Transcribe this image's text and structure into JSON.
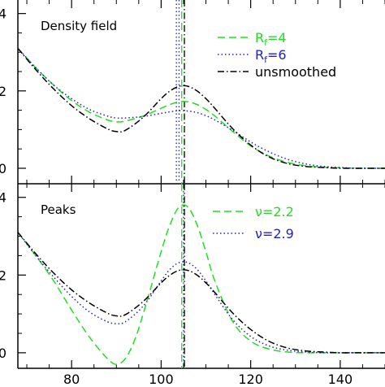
{
  "colors": {
    "green": "#22dd22",
    "blue": "#2222cc",
    "black": "#000000"
  },
  "chart_data": [
    {
      "type": "line",
      "title": "Density field",
      "xlim": [
        68,
        150
      ],
      "ylim": [
        -0.4,
        4.35
      ],
      "yticks": [
        0,
        2,
        4
      ],
      "yticklabels": [
        "0",
        "2",
        "4"
      ],
      "xticks": [
        80,
        100,
        120,
        140
      ],
      "vlines": [
        {
          "x": 103.4,
          "color": "#2222cc",
          "style": "dotted"
        },
        {
          "x": 104.0,
          "color": "#2222cc",
          "style": "dotted"
        },
        {
          "x": 104.6,
          "color": "#22dd22",
          "style": "dashed"
        },
        {
          "x": 105.2,
          "color": "#000000",
          "style": "dashdot"
        }
      ],
      "legend": {
        "placement": "top-right",
        "entries": [
          "R_f=4",
          "R_f=6",
          "unsmoothed"
        ]
      },
      "series": [
        {
          "name": "R_f=4",
          "color": "#22dd22",
          "style": "dashed",
          "x": [
            68,
            72,
            76,
            80,
            84,
            88,
            90,
            92,
            96,
            100,
            102,
            104,
            106,
            108,
            110,
            112,
            116,
            120,
            124,
            128,
            132,
            136,
            140,
            144,
            150
          ],
          "y": [
            3.1,
            2.6,
            2.15,
            1.75,
            1.45,
            1.25,
            1.2,
            1.22,
            1.35,
            1.55,
            1.65,
            1.72,
            1.72,
            1.65,
            1.52,
            1.35,
            0.95,
            0.58,
            0.32,
            0.16,
            0.07,
            0.03,
            0.01,
            0.0,
            0.0
          ]
        },
        {
          "name": "R_f=6",
          "color": "#2222cc",
          "style": "dotted",
          "x": [
            68,
            72,
            76,
            80,
            84,
            88,
            90,
            92,
            96,
            100,
            102,
            104,
            106,
            108,
            110,
            112,
            116,
            120,
            124,
            128,
            132,
            136,
            140,
            144,
            150
          ],
          "y": [
            3.1,
            2.6,
            2.15,
            1.8,
            1.52,
            1.35,
            1.3,
            1.3,
            1.34,
            1.42,
            1.46,
            1.49,
            1.48,
            1.44,
            1.36,
            1.25,
            0.98,
            0.68,
            0.43,
            0.24,
            0.12,
            0.05,
            0.02,
            0.0,
            0.0
          ]
        },
        {
          "name": "unsmoothed",
          "color": "#000000",
          "style": "dashdot",
          "x": [
            68,
            72,
            76,
            80,
            84,
            88,
            90,
            92,
            96,
            100,
            102,
            104,
            106,
            108,
            110,
            112,
            116,
            120,
            124,
            128,
            132,
            136,
            140,
            144,
            150
          ],
          "y": [
            3.1,
            2.55,
            2.05,
            1.62,
            1.28,
            1.02,
            0.95,
            0.98,
            1.32,
            1.8,
            2.0,
            2.12,
            2.12,
            2.0,
            1.8,
            1.55,
            1.02,
            0.6,
            0.3,
            0.13,
            0.05,
            0.02,
            0.0,
            0.0,
            0.0
          ]
        }
      ]
    },
    {
      "type": "line",
      "title": "Peaks",
      "xlim": [
        68,
        150
      ],
      "ylim": [
        -0.4,
        4.35
      ],
      "yticks": [
        0,
        2,
        4
      ],
      "yticklabels": [
        "0",
        "2",
        "4"
      ],
      "xticks": [
        80,
        100,
        120,
        140
      ],
      "xticklabels": [
        "80",
        "100",
        "120",
        "140"
      ],
      "vlines": [
        {
          "x": 104.6,
          "color": "#22dd22",
          "style": "dashed"
        },
        {
          "x": 105.0,
          "color": "#2222cc",
          "style": "dotted"
        },
        {
          "x": 105.2,
          "color": "#000000",
          "style": "dashdot"
        }
      ],
      "legend": {
        "placement": "top-right",
        "entries": [
          "ν=2.2",
          "ν=2.9"
        ]
      },
      "series": [
        {
          "name": "ν=2.2",
          "color": "#22dd22",
          "style": "dashed",
          "x": [
            68,
            72,
            76,
            80,
            84,
            88,
            90,
            92,
            94,
            96,
            100,
            102,
            104,
            106,
            108,
            110,
            112,
            116,
            120,
            124,
            128,
            132,
            136,
            140,
            144,
            150
          ],
          "y": [
            3.1,
            2.5,
            1.85,
            1.1,
            0.4,
            -0.15,
            -0.3,
            -0.15,
            0.3,
            1.0,
            2.6,
            3.3,
            3.75,
            3.75,
            3.3,
            2.6,
            1.85,
            0.8,
            0.3,
            0.1,
            0.02,
            0.0,
            0.0,
            0.0,
            0.0,
            0.0
          ]
        },
        {
          "name": "ν=2.9",
          "color": "#2222cc",
          "style": "dotted",
          "x": [
            68,
            72,
            76,
            80,
            84,
            88,
            90,
            92,
            96,
            100,
            102,
            104,
            106,
            108,
            110,
            112,
            116,
            120,
            124,
            128,
            132,
            136,
            140,
            144,
            150
          ],
          "y": [
            3.1,
            2.5,
            1.95,
            1.45,
            1.05,
            0.8,
            0.75,
            0.8,
            1.2,
            1.85,
            2.15,
            2.32,
            2.32,
            2.15,
            1.85,
            1.5,
            0.85,
            0.42,
            0.18,
            0.07,
            0.02,
            0.0,
            0.0,
            0.0,
            0.0
          ]
        },
        {
          "name": "",
          "color": "#000000",
          "style": "dashdot",
          "x": [
            68,
            72,
            76,
            80,
            84,
            88,
            90,
            92,
            96,
            100,
            102,
            104,
            106,
            108,
            110,
            112,
            116,
            120,
            124,
            128,
            132,
            136,
            140,
            144,
            150
          ],
          "y": [
            3.1,
            2.55,
            2.05,
            1.62,
            1.28,
            1.02,
            0.95,
            0.98,
            1.32,
            1.8,
            2.0,
            2.12,
            2.12,
            2.0,
            1.8,
            1.55,
            1.02,
            0.6,
            0.3,
            0.13,
            0.05,
            0.02,
            0.0,
            0.0,
            0.0
          ]
        }
      ]
    }
  ],
  "legend_labels": {
    "top": {
      "rf4_main": "R",
      "rf4_sub": "f",
      "rf4_rest": "=4",
      "rf6_main": "R",
      "rf6_sub": "f",
      "rf6_rest": "=6",
      "unsmoothed": "unsmoothed"
    },
    "bottom": {
      "nu22": "ν=2.2",
      "nu29": "ν=2.9"
    }
  }
}
